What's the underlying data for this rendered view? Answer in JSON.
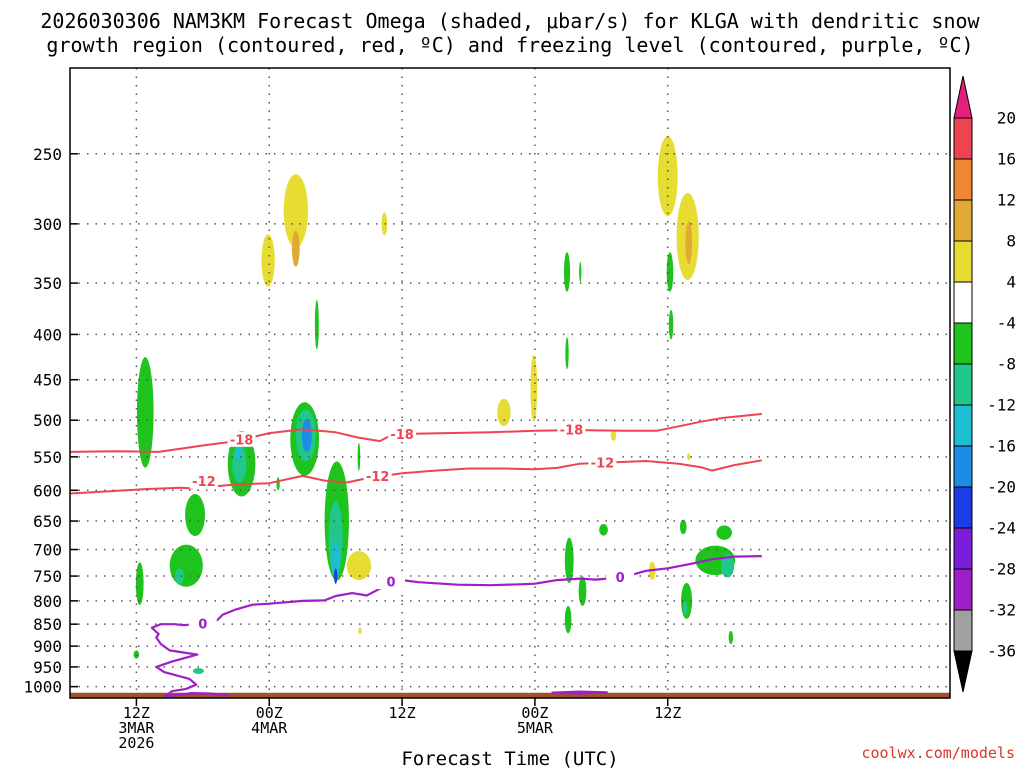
{
  "chart_data": {
    "type": "time-height cross section",
    "title_line1": "2026030306 NAM3KM Forecast Omega (shaded, μbar/s) for KLGA with dendritic snow",
    "title_line2": "growth region (contoured, red, ºC) and freezing level (contoured, purple, ºC)",
    "xlabel": "Forecast Time (UTC)",
    "credit": "coolwx.com/models",
    "x_unit": "hours since 2026-03-03 00Z",
    "xlim": [
      6,
      85.5
    ],
    "ylim_hPa": [
      1030,
      200
    ],
    "y_ticks": [
      250,
      300,
      350,
      400,
      450,
      500,
      550,
      600,
      650,
      700,
      750,
      800,
      850,
      900,
      950,
      1000
    ],
    "x_ticks": [
      {
        "hour": 12,
        "lines": [
          "12Z",
          "3MAR",
          "2026"
        ]
      },
      {
        "hour": 24,
        "lines": [
          "00Z",
          "4MAR"
        ]
      },
      {
        "hour": 36,
        "lines": [
          "12Z"
        ]
      },
      {
        "hour": 48,
        "lines": [
          "00Z",
          "5MAR"
        ]
      },
      {
        "hour": 60,
        "lines": [
          "12Z"
        ]
      }
    ],
    "colorbar": {
      "labels": [
        "20",
        "16",
        "12",
        "8",
        "4",
        "-4",
        "-8",
        "-12",
        "-16",
        "-20",
        "-24",
        "-28",
        "-32",
        "-36"
      ],
      "bins": [
        {
          "lo": 16,
          "hi": 20,
          "color": "#ee4452"
        },
        {
          "lo": 12,
          "hi": 16,
          "color": "#ee8632"
        },
        {
          "lo": 8,
          "hi": 12,
          "color": "#e0aa34"
        },
        {
          "lo": 4,
          "hi": 8,
          "color": "#e6dc32"
        },
        {
          "lo": -4,
          "hi": 4,
          "color": "#ffffff"
        },
        {
          "lo": -8,
          "hi": -4,
          "color": "#1ec31e"
        },
        {
          "lo": -12,
          "hi": -8,
          "color": "#1fc88a"
        },
        {
          "lo": -16,
          "hi": -12,
          "color": "#1ebed2"
        },
        {
          "lo": -20,
          "hi": -16,
          "color": "#1e8ce6"
        },
        {
          "lo": -24,
          "hi": -20,
          "color": "#1e3ce6"
        },
        {
          "lo": -28,
          "hi": -24,
          "color": "#7a1edc"
        },
        {
          "lo": -32,
          "hi": -28,
          "color": "#a01ec8"
        },
        {
          "lo": -36,
          "hi": -32,
          "color": "#a0a0a0"
        }
      ],
      "top_arrow_color": "#e6207a",
      "bottom_arrow_color": "#000000"
    },
    "omega_blobs": [
      {
        "h": 12.8,
        "p": 490,
        "w": 0.75,
        "dp": 140,
        "v": -5
      },
      {
        "h": 12.3,
        "p": 765,
        "w": 0.35,
        "dp": 85,
        "v": -6
      },
      {
        "h": 12.0,
        "p": 920,
        "w": 0.25,
        "dp": 20,
        "v": -5
      },
      {
        "h": 16.5,
        "p": 730,
        "w": 1.5,
        "dp": 80,
        "v": -6
      },
      {
        "h": 15.9,
        "p": 750,
        "w": 0.4,
        "dp": 30,
        "v": -9
      },
      {
        "h": 17.3,
        "p": 640,
        "w": 0.9,
        "dp": 70,
        "v": -5
      },
      {
        "h": 17.6,
        "p": 960,
        "w": 0.5,
        "dp": 15,
        "v": -9
      },
      {
        "h": 21.5,
        "p": 560,
        "w": 1.25,
        "dp": 95,
        "v": -6
      },
      {
        "h": 21.3,
        "p": 560,
        "w": 0.65,
        "dp": 55,
        "v": -10
      },
      {
        "h": 21.2,
        "p": 540,
        "w": 0.3,
        "dp": 25,
        "v": -14
      },
      {
        "h": 23.9,
        "p": 330,
        "w": 0.6,
        "dp": 45,
        "v": 5
      },
      {
        "h": 24.8,
        "p": 590,
        "w": 0.15,
        "dp": 20,
        "v": -5
      },
      {
        "h": 26.4,
        "p": 290,
        "w": 1.1,
        "dp": 55,
        "v": 5
      },
      {
        "h": 26.4,
        "p": 320,
        "w": 0.35,
        "dp": 30,
        "v": 10
      },
      {
        "h": 27.2,
        "p": 525,
        "w": 1.3,
        "dp": 100,
        "v": -6
      },
      {
        "h": 27.3,
        "p": 520,
        "w": 0.9,
        "dp": 70,
        "v": -11
      },
      {
        "h": 27.4,
        "p": 520,
        "w": 0.45,
        "dp": 45,
        "v": -17
      },
      {
        "h": 28.3,
        "p": 390,
        "w": 0.18,
        "dp": 50,
        "v": -5
      },
      {
        "h": 30.1,
        "p": 650,
        "w": 1.1,
        "dp": 200,
        "v": -6
      },
      {
        "h": 30.0,
        "p": 680,
        "w": 0.65,
        "dp": 130,
        "v": -10
      },
      {
        "h": 30.0,
        "p": 720,
        "w": 0.35,
        "dp": 75,
        "v": -15
      },
      {
        "h": 30.0,
        "p": 750,
        "w": 0.15,
        "dp": 30,
        "v": -22
      },
      {
        "h": 32.1,
        "p": 730,
        "w": 1.1,
        "dp": 55,
        "v": 5
      },
      {
        "h": 32.2,
        "p": 865,
        "w": 0.15,
        "dp": 15,
        "v": 4.5
      },
      {
        "h": 32.1,
        "p": 550,
        "w": 0.12,
        "dp": 40,
        "v": -5
      },
      {
        "h": 34.4,
        "p": 300,
        "w": 0.25,
        "dp": 18,
        "v": 5
      },
      {
        "h": 45.2,
        "p": 490,
        "w": 0.6,
        "dp": 35,
        "v": 5
      },
      {
        "h": 47.9,
        "p": 460,
        "w": 0.3,
        "dp": 80,
        "v": 5
      },
      {
        "h": 48.0,
        "p": 470,
        "w": 0.15,
        "dp": 35,
        "v": 4.5
      },
      {
        "h": 50.9,
        "p": 340,
        "w": 0.28,
        "dp": 35,
        "v": -5
      },
      {
        "h": 50.9,
        "p": 420,
        "w": 0.15,
        "dp": 35,
        "v": -5
      },
      {
        "h": 52.1,
        "p": 340,
        "w": 0.1,
        "dp": 18,
        "v": -5
      },
      {
        "h": 51.1,
        "p": 720,
        "w": 0.4,
        "dp": 85,
        "v": -5
      },
      {
        "h": 51.0,
        "p": 840,
        "w": 0.3,
        "dp": 60,
        "v": -5
      },
      {
        "h": 52.3,
        "p": 780,
        "w": 0.35,
        "dp": 60,
        "v": -5
      },
      {
        "h": 54.2,
        "p": 665,
        "w": 0.4,
        "dp": 20,
        "v": -5
      },
      {
        "h": 55.1,
        "p": 520,
        "w": 0.25,
        "dp": 15,
        "v": 4.5
      },
      {
        "h": 58.6,
        "p": 740,
        "w": 0.3,
        "dp": 35,
        "v": 5
      },
      {
        "h": 60.0,
        "p": 265,
        "w": 0.9,
        "dp": 55,
        "v": 5
      },
      {
        "h": 60.2,
        "p": 340,
        "w": 0.3,
        "dp": 35,
        "v": -5
      },
      {
        "h": 60.3,
        "p": 390,
        "w": 0.2,
        "dp": 30,
        "v": -5
      },
      {
        "h": 61.8,
        "p": 310,
        "w": 1.0,
        "dp": 70,
        "v": 5
      },
      {
        "h": 61.9,
        "p": 315,
        "w": 0.3,
        "dp": 35,
        "v": 10
      },
      {
        "h": 61.9,
        "p": 550,
        "w": 0.15,
        "dp": 10,
        "v": 5
      },
      {
        "h": 61.7,
        "p": 800,
        "w": 0.5,
        "dp": 75,
        "v": -5
      },
      {
        "h": 61.6,
        "p": 815,
        "w": 0.2,
        "dp": 30,
        "v": -10
      },
      {
        "h": 61.4,
        "p": 660,
        "w": 0.3,
        "dp": 25,
        "v": -5
      },
      {
        "h": 64.3,
        "p": 720,
        "w": 1.8,
        "dp": 55,
        "v": -6
      },
      {
        "h": 65.4,
        "p": 730,
        "w": 0.6,
        "dp": 45,
        "v": -10
      },
      {
        "h": 65.1,
        "p": 670,
        "w": 0.7,
        "dp": 25,
        "v": -5
      },
      {
        "h": 65.7,
        "p": 880,
        "w": 0.2,
        "dp": 30,
        "v": -5
      }
    ],
    "dgz_contours": [
      {
        "level": "-18",
        "label_at_hours": [
          21.5,
          36.0,
          51.3
        ],
        "points": [
          [
            6,
            543
          ],
          [
            10,
            542
          ],
          [
            14,
            543
          ],
          [
            18,
            534
          ],
          [
            21,
            528
          ],
          [
            24,
            517
          ],
          [
            27,
            512
          ],
          [
            30,
            516
          ],
          [
            32,
            523
          ],
          [
            34,
            528
          ],
          [
            35,
            520
          ],
          [
            37,
            518
          ],
          [
            40,
            517
          ],
          [
            44,
            516
          ],
          [
            48,
            514
          ],
          [
            52,
            513
          ],
          [
            56,
            514
          ],
          [
            59,
            514
          ],
          [
            61,
            508
          ],
          [
            63,
            502
          ],
          [
            65,
            497
          ],
          [
            67,
            494
          ],
          [
            68.5,
            492
          ]
        ]
      },
      {
        "level": "-12",
        "label_at_hours": [
          18.1,
          33.8,
          54.1
        ],
        "points": [
          [
            6,
            605
          ],
          [
            9,
            602
          ],
          [
            13,
            598
          ],
          [
            16,
            596
          ],
          [
            17,
            597
          ],
          [
            18,
            586
          ],
          [
            19,
            594
          ],
          [
            21,
            591
          ],
          [
            24,
            589
          ],
          [
            27,
            578
          ],
          [
            29,
            585
          ],
          [
            31,
            588
          ],
          [
            33,
            581
          ],
          [
            36,
            574
          ],
          [
            39,
            570
          ],
          [
            42,
            567
          ],
          [
            45,
            567
          ],
          [
            48,
            568
          ],
          [
            50,
            566
          ],
          [
            52,
            560
          ],
          [
            55,
            558
          ],
          [
            58,
            556
          ],
          [
            61,
            560
          ],
          [
            63,
            565
          ],
          [
            64,
            570
          ],
          [
            66,
            562
          ],
          [
            68.5,
            555
          ]
        ]
      }
    ],
    "freezing_level": {
      "level": "0",
      "label_at_hours": [
        18.0,
        35.0,
        55.7
      ],
      "points": [
        [
          20.4,
          1022
        ],
        [
          18.5,
          1018
        ],
        [
          17,
          1017
        ],
        [
          15.5,
          1023
        ],
        [
          14.6,
          1025
        ],
        [
          15.2,
          1012
        ],
        [
          16.5,
          1006
        ],
        [
          17.4,
          995
        ],
        [
          16.8,
          980
        ],
        [
          14.5,
          963
        ],
        [
          13.8,
          950
        ],
        [
          15.2,
          937
        ],
        [
          17.5,
          920
        ],
        [
          15.0,
          910
        ],
        [
          14.2,
          895
        ],
        [
          13.8,
          880
        ],
        [
          14.0,
          872
        ],
        [
          13.4,
          858
        ],
        [
          14.2,
          850
        ],
        [
          15.4,
          850
        ],
        [
          16.3,
          852
        ],
        [
          17.5,
          850
        ],
        [
          18.6,
          848
        ],
        [
          19.3,
          841
        ],
        [
          19.8,
          829
        ],
        [
          21,
          818
        ],
        [
          22.5,
          808
        ],
        [
          24,
          806
        ],
        [
          27,
          800
        ],
        [
          29,
          799
        ],
        [
          30,
          790
        ],
        [
          31.5,
          784
        ],
        [
          32.8,
          789
        ],
        [
          34,
          775
        ],
        [
          35,
          762
        ],
        [
          36,
          758
        ],
        [
          37.5,
          762
        ],
        [
          41,
          767
        ],
        [
          44,
          768
        ],
        [
          47,
          766
        ],
        [
          48,
          765
        ],
        [
          50,
          758
        ],
        [
          52,
          755
        ],
        [
          53.5,
          757
        ],
        [
          56,
          752
        ],
        [
          58,
          740
        ],
        [
          60,
          735
        ],
        [
          62,
          727
        ],
        [
          64,
          718
        ],
        [
          66,
          713
        ],
        [
          68.5,
          712
        ]
      ],
      "small_loop": [
        [
          49.5,
          1016
        ],
        [
          52,
          1013
        ],
        [
          54.5,
          1015
        ],
        [
          52,
          1018
        ],
        [
          49.5,
          1016
        ]
      ]
    },
    "terrain": {
      "color": "#a0522d",
      "top_hPa": 1016
    }
  }
}
